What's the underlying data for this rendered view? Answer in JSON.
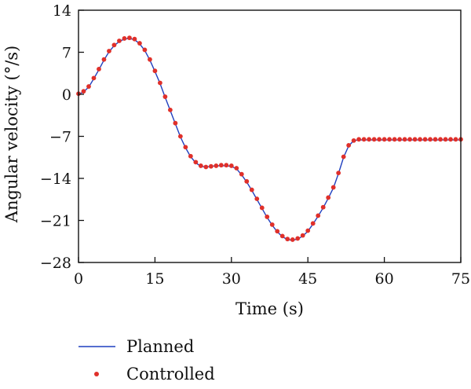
{
  "chart_data": {
    "type": "line",
    "title": "",
    "xlabel": "Time (s)",
    "ylabel": "Angular velocity (°/s)",
    "xlim": [
      0,
      75
    ],
    "ylim": [
      -28,
      14
    ],
    "xticks": [
      0,
      15,
      30,
      45,
      60,
      75
    ],
    "yticks": [
      14,
      7,
      0,
      -7,
      -14,
      -21,
      -28
    ],
    "ytick_labels": [
      "14",
      "7",
      "0",
      "−7",
      "−14",
      "−21",
      "−28"
    ],
    "grid": false,
    "legend_position": "below plot, left",
    "series": [
      {
        "name": "Planned",
        "style": "line",
        "color": "#1f3fbf",
        "x": [
          0,
          1,
          2,
          3,
          4,
          5,
          6,
          7,
          8,
          9,
          10,
          11,
          12,
          13,
          14,
          15,
          16,
          17,
          18,
          19,
          20,
          21,
          22,
          23,
          24,
          25,
          26,
          27,
          28,
          29,
          30,
          31,
          32,
          33,
          34,
          35,
          36,
          37,
          38,
          39,
          40,
          41,
          42,
          43,
          44,
          45,
          46,
          47,
          48,
          49,
          50,
          51,
          52,
          53,
          54,
          55,
          56,
          57,
          58,
          59,
          60,
          61,
          62,
          63,
          64,
          65,
          66,
          67,
          68,
          69,
          70,
          71,
          72,
          73,
          74,
          75
        ],
        "values": [
          0,
          0.4,
          1.2,
          2.6,
          4.1,
          5.7,
          7.1,
          8.1,
          8.8,
          9.2,
          9.3,
          9.1,
          8.4,
          7.3,
          5.7,
          3.8,
          1.8,
          -0.5,
          -2.7,
          -4.9,
          -7.1,
          -8.9,
          -10.4,
          -11.4,
          -12.0,
          -12.1,
          -12.0,
          -11.9,
          -11.9,
          -11.9,
          -12.0,
          -12.4,
          -13.4,
          -14.6,
          -16.0,
          -17.5,
          -19.0,
          -20.5,
          -21.8,
          -22.9,
          -23.7,
          -24.2,
          -24.3,
          -24.1,
          -23.6,
          -22.8,
          -21.6,
          -20.3,
          -18.9,
          -17.3,
          -15.6,
          -13.2,
          -10.5,
          -8.6,
          -7.7,
          -7.6,
          -7.6,
          -7.6,
          -7.6,
          -7.6,
          -7.6,
          -7.6,
          -7.6,
          -7.6,
          -7.6,
          -7.6,
          -7.6,
          -7.6,
          -7.6,
          -7.6,
          -7.6,
          -7.6,
          -7.6,
          -7.6,
          -7.6,
          -7.6
        ]
      },
      {
        "name": "Controlled",
        "style": "points",
        "color": "#e0302a",
        "x": [
          0,
          1,
          2,
          3,
          4,
          5,
          6,
          7,
          8,
          9,
          10,
          11,
          12,
          13,
          14,
          15,
          16,
          17,
          18,
          19,
          20,
          21,
          22,
          23,
          24,
          25,
          26,
          27,
          28,
          29,
          30,
          31,
          32,
          33,
          34,
          35,
          36,
          37,
          38,
          39,
          40,
          41,
          42,
          43,
          44,
          45,
          46,
          47,
          48,
          49,
          50,
          51,
          52,
          53,
          54,
          55,
          56,
          57,
          58,
          59,
          60,
          61,
          62,
          63,
          64,
          65,
          66,
          67,
          68,
          69,
          70,
          71,
          72,
          73,
          74,
          75
        ],
        "values": [
          0.1,
          0.5,
          1.3,
          2.7,
          4.2,
          5.8,
          7.2,
          8.2,
          8.9,
          9.3,
          9.4,
          9.2,
          8.5,
          7.4,
          5.8,
          3.9,
          1.9,
          -0.4,
          -2.6,
          -4.8,
          -7.0,
          -8.8,
          -10.3,
          -11.3,
          -11.9,
          -12.1,
          -12.0,
          -11.9,
          -11.8,
          -11.8,
          -11.9,
          -12.3,
          -13.3,
          -14.5,
          -15.9,
          -17.4,
          -18.9,
          -20.4,
          -21.7,
          -22.8,
          -23.6,
          -24.1,
          -24.2,
          -24.0,
          -23.5,
          -22.7,
          -21.5,
          -20.2,
          -18.8,
          -17.2,
          -15.5,
          -13.1,
          -10.4,
          -8.5,
          -7.7,
          -7.5,
          -7.5,
          -7.5,
          -7.5,
          -7.5,
          -7.5,
          -7.5,
          -7.5,
          -7.5,
          -7.5,
          -7.5,
          -7.5,
          -7.5,
          -7.5,
          -7.5,
          -7.5,
          -7.5,
          -7.5,
          -7.5,
          -7.5,
          -7.5
        ]
      }
    ]
  }
}
